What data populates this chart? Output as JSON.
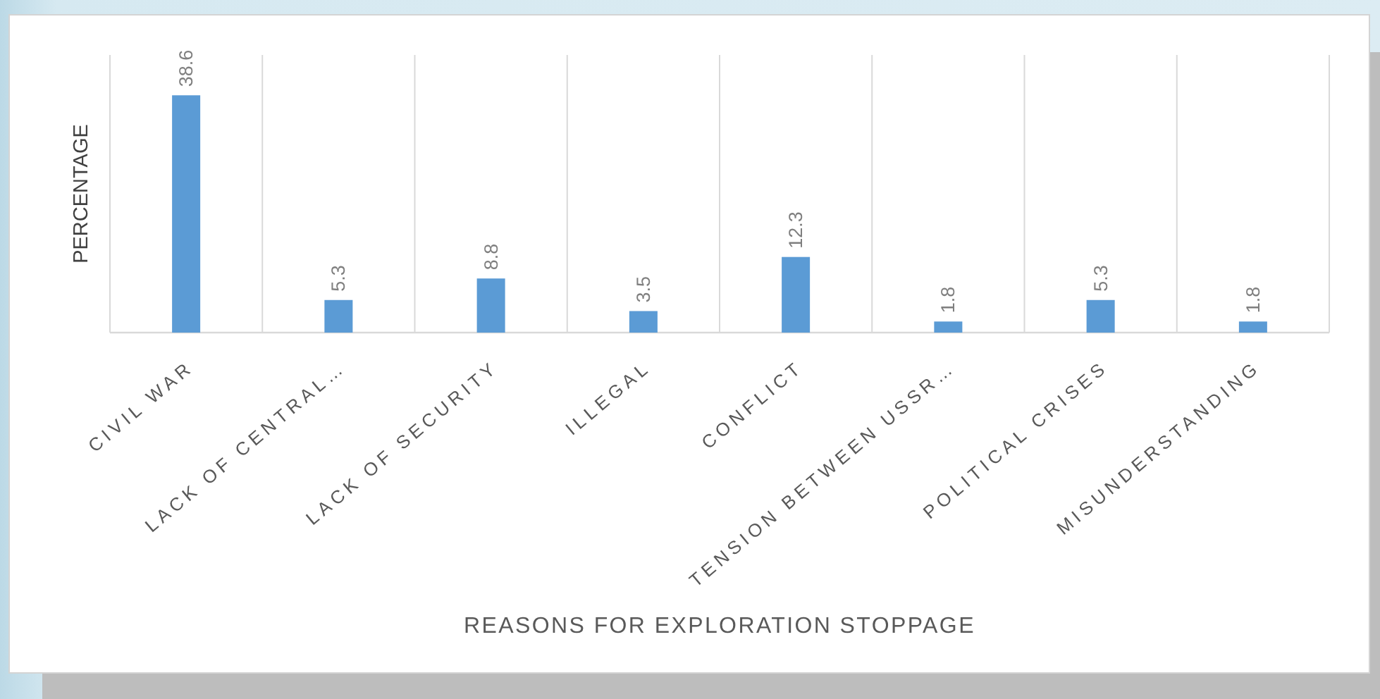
{
  "chart_data": {
    "type": "bar",
    "xlabel": "REASONS FOR EXPLORATION STOPPAGE",
    "ylabel": "PERCENTAGE",
    "categories": [
      "CIVIL WAR",
      "LACK OF CENTRAL…",
      "LACK OF SECURITY",
      "ILLEGAL",
      "CONFLICT",
      "TENSION BETWEEN USSR…",
      "POLITICAL CRISES",
      "MISUNDERSTANDING"
    ],
    "values": [
      38.6,
      5.3,
      8.8,
      3.5,
      12.3,
      1.8,
      5.3,
      1.8
    ],
    "color": "#5b9bd5",
    "data_labels": true,
    "grid": "x",
    "tick_labels": "x"
  }
}
